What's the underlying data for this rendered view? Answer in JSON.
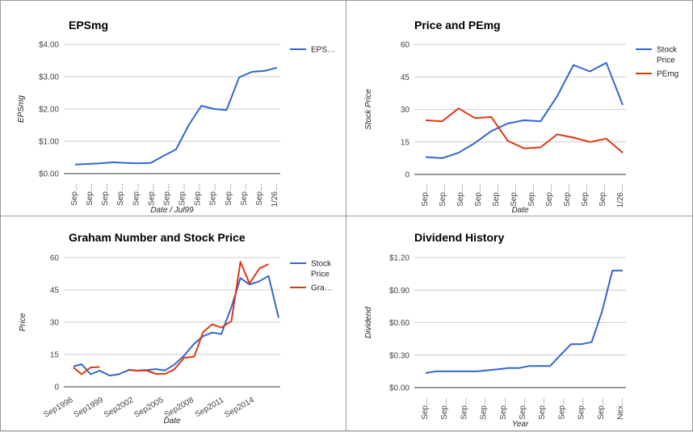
{
  "chart_data": [
    {
      "type": "line",
      "title": "EPSmg",
      "xlabel": "Date / Jul99",
      "ylabel": "EPSmg",
      "ylim": [
        0,
        4
      ],
      "yticks": [
        "$0.00",
        "$1.00",
        "$2.00",
        "$3.00",
        "$4.00"
      ],
      "ytick_values": [
        0,
        1,
        2,
        3,
        4
      ],
      "xticks": [
        "Sep…",
        "Sep…",
        "Sep…",
        "Sep…",
        "Sep…",
        "Sep…",
        "Sep…",
        "Sep…",
        "Sep…",
        "Sep…",
        "Sep…",
        "Sep…",
        "Sep…",
        "1/26…"
      ],
      "legend_position": "right",
      "series": [
        {
          "name": "EPS…",
          "color": "#3366cc",
          "values": [
            0.28,
            0.3,
            0.32,
            0.35,
            0.33,
            0.32,
            0.33,
            0.55,
            0.75,
            1.5,
            2.1,
            2.0,
            1.97,
            2.98,
            3.15,
            3.18,
            3.28
          ]
        }
      ]
    },
    {
      "type": "line",
      "title": "Price and PEmg",
      "xlabel": "Date",
      "ylabel": "Stock Price",
      "ylim": [
        0,
        60
      ],
      "yticks": [
        "0",
        "15",
        "30",
        "45",
        "60"
      ],
      "ytick_values": [
        0,
        15,
        30,
        45,
        60
      ],
      "xticks": [
        "Sep…",
        "Sep…",
        "Sep…",
        "Sep…",
        "Sep…",
        "Sep…",
        "Sep…",
        "Sep…",
        "Sep…",
        "Sep…",
        "Sep…",
        "1/26…"
      ],
      "legend_position": "right",
      "series": [
        {
          "name": "Stock Price",
          "color": "#3366cc",
          "values": [
            8,
            7.5,
            10,
            14.5,
            20,
            23.5,
            25,
            24.5,
            36,
            50.5,
            47.5,
            51.5,
            32
          ]
        },
        {
          "name": "PEmg",
          "color": "#dc3912",
          "values": [
            25,
            24.5,
            30.5,
            26,
            26.5,
            15.5,
            12,
            12.5,
            18.5,
            17,
            15,
            16.5,
            10
          ]
        }
      ]
    },
    {
      "type": "line",
      "title": "Graham Number and Stock Price",
      "xlabel": "Date",
      "ylabel": "Price",
      "ylim": [
        0,
        60
      ],
      "yticks": [
        "0",
        "15",
        "30",
        "45",
        "60"
      ],
      "ytick_values": [
        0,
        15,
        30,
        45,
        60
      ],
      "xticks": [
        "Sep1996",
        "Sep1999",
        "Sep2002",
        "Sep2005",
        "Sep2008",
        "Sep2011",
        "Sep2014"
      ],
      "xtick_values": [
        1996.7,
        1999.7,
        2002.7,
        2005.7,
        2008.7,
        2011.7,
        2014.7
      ],
      "xlim": [
        1996.7,
        2017.1
      ],
      "legend_position": "right",
      "series": [
        {
          "name": "Stock Price",
          "color": "#3366cc",
          "x": [
            1996.7,
            1997.5,
            1998.4,
            1999.3,
            2000.3,
            2001.2,
            2002.2,
            2003.0,
            2004.0,
            2004.9,
            2005.8,
            2006.7,
            2007.7,
            2008.7,
            2009.6,
            2010.5,
            2011.4,
            2012.4,
            2013.3,
            2014.2,
            2015.2,
            2016.1,
            2017.1
          ],
          "y": [
            9.5,
            10.5,
            5.8,
            7.5,
            5.2,
            5.8,
            7.8,
            7.5,
            7.8,
            8.2,
            7.6,
            10.2,
            14.5,
            20.0,
            23.5,
            25.2,
            24.5,
            37.0,
            50.5,
            47.5,
            49.0,
            51.5,
            32.0
          ]
        },
        {
          "name": "Gra…",
          "color": "#dc3912",
          "x": [
            1996.7,
            1997.5,
            1998.4,
            1999.3,
            null,
            2002.2,
            2003.0,
            2004.0,
            2004.9,
            2005.8,
            2006.7,
            2007.7,
            2008.7,
            2009.6,
            2010.5,
            2011.4,
            2012.4,
            2013.3,
            2014.2,
            2015.2,
            2016.1
          ],
          "y": [
            9.0,
            5.8,
            9.0,
            9.2,
            null,
            8.0,
            7.5,
            7.5,
            6.0,
            6.0,
            8.0,
            13.5,
            14.0,
            25.5,
            29.0,
            27.5,
            30.5,
            58.0,
            48.0,
            55.0,
            57.0
          ]
        }
      ]
    },
    {
      "type": "line",
      "title": "Dividend History",
      "xlabel": "Year",
      "ylabel": "Dividend",
      "ylim": [
        0,
        1.2
      ],
      "yticks": [
        "$0.00",
        "$0.30",
        "$0.60",
        "$0.90",
        "$1.20"
      ],
      "ytick_values": [
        0,
        0.3,
        0.6,
        0.9,
        1.2
      ],
      "xticks": [
        "Sep…",
        "Sep…",
        "Sep…",
        "Sep…",
        "Sep…",
        "Sep…",
        "Sep…",
        "Sep…",
        "Sep…",
        "Sep…",
        "Nex…"
      ],
      "series": [
        {
          "name": "",
          "color": "#3366cc",
          "values": [
            0.135,
            0.15,
            0.15,
            0.15,
            0.15,
            0.15,
            0.16,
            0.17,
            0.18,
            0.18,
            0.2,
            0.2,
            0.2,
            0.3,
            0.4,
            0.4,
            0.42,
            0.7,
            1.08,
            1.08
          ]
        }
      ]
    }
  ]
}
